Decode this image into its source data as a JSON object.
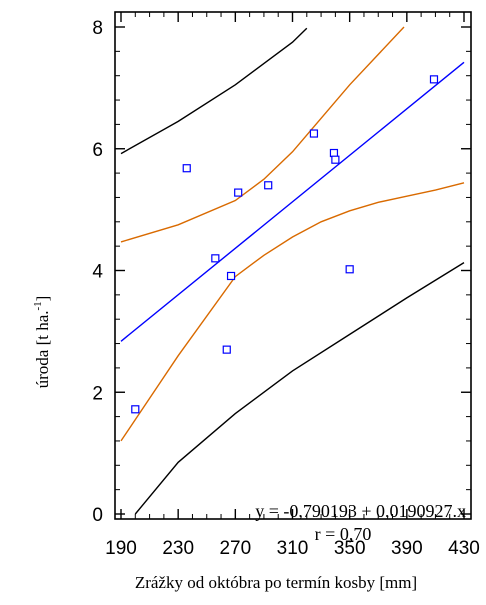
{
  "chart_data": {
    "type": "scatter",
    "title": "",
    "xlabel": "Zrážky od októbra po termín kosby [mm]",
    "ylabel_main": "úroda [t ha.",
    "ylabel_sup": "-1",
    "ylabel_end": "]",
    "xlim": [
      190,
      430
    ],
    "ylim": [
      0,
      8
    ],
    "x_ticks": [
      "190",
      "230",
      "270",
      "310",
      "350",
      "390",
      "430"
    ],
    "y_ticks": [
      "0",
      "2",
      "4",
      "6",
      "8"
    ],
    "equation_label": "y = -0,790193 + 0,0190927.x",
    "r_label": "r = 0,70",
    "regression": {
      "intercept": -0.790193,
      "slope": 0.0190927
    },
    "points": [
      {
        "x": 200,
        "y": 1.72
      },
      {
        "x": 236,
        "y": 5.68
      },
      {
        "x": 256,
        "y": 4.2
      },
      {
        "x": 264,
        "y": 2.7
      },
      {
        "x": 267,
        "y": 3.91
      },
      {
        "x": 272,
        "y": 5.28
      },
      {
        "x": 293,
        "y": 5.4
      },
      {
        "x": 325,
        "y": 6.25
      },
      {
        "x": 339,
        "y": 5.93
      },
      {
        "x": 340,
        "y": 5.82
      },
      {
        "x": 350,
        "y": 4.02
      },
      {
        "x": 409,
        "y": 7.14
      }
    ],
    "confidence_band": {
      "name": "confidence",
      "color": "#d96a00",
      "upper": [
        [
          190,
          4.47
        ],
        [
          230,
          4.75
        ],
        [
          270,
          5.15
        ],
        [
          290,
          5.5
        ],
        [
          310,
          5.95
        ],
        [
          330,
          6.5
        ],
        [
          350,
          7.05
        ],
        [
          370,
          7.55
        ],
        [
          388,
          8.0
        ]
      ],
      "lower": [
        [
          190,
          1.2
        ],
        [
          230,
          2.6
        ],
        [
          270,
          3.9
        ],
        [
          290,
          4.25
        ],
        [
          310,
          4.55
        ],
        [
          330,
          4.8
        ],
        [
          350,
          4.98
        ],
        [
          370,
          5.12
        ],
        [
          390,
          5.22
        ],
        [
          410,
          5.32
        ],
        [
          430,
          5.44
        ]
      ]
    },
    "prediction_band": {
      "name": "prediction",
      "color": "#000000",
      "upper": [
        [
          190,
          5.92
        ],
        [
          230,
          6.45
        ],
        [
          270,
          7.05
        ],
        [
          310,
          7.75
        ],
        [
          320,
          7.98
        ]
      ],
      "lower": [
        [
          200,
          0.0
        ],
        [
          230,
          0.85
        ],
        [
          270,
          1.65
        ],
        [
          310,
          2.35
        ],
        [
          350,
          2.95
        ],
        [
          390,
          3.55
        ],
        [
          430,
          4.13
        ]
      ]
    },
    "regression_color": "#0000ff",
    "point_color": "#0000ff",
    "grid": false
  }
}
